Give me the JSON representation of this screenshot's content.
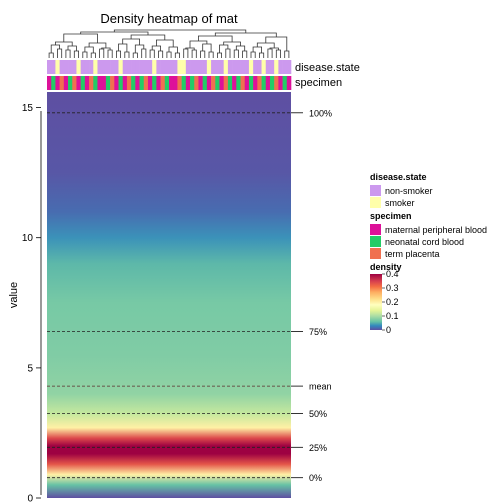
{
  "chart_data": {
    "type": "heatmap",
    "title": "Density heatmap of mat",
    "ylabel": "value",
    "ylim": [
      0,
      15.6
    ],
    "y_ticks": [
      0,
      5,
      10,
      15
    ],
    "n_columns": 58,
    "dendrogram": true,
    "annotation_tracks": [
      {
        "name": "disease.state",
        "title": "disease.state",
        "levels": [
          {
            "label": "non-smoker",
            "color": "#cc99ee"
          },
          {
            "label": "smoker",
            "color": "#ffffaa"
          }
        ],
        "values": [
          0,
          0,
          1,
          0,
          0,
          0,
          0,
          1,
          0,
          0,
          0,
          1,
          0,
          0,
          0,
          0,
          0,
          1,
          0,
          0,
          0,
          0,
          0,
          0,
          0,
          1,
          0,
          0,
          0,
          0,
          0,
          1,
          1,
          0,
          0,
          0,
          0,
          0,
          1,
          0,
          0,
          0,
          1,
          0,
          0,
          0,
          0,
          0,
          1,
          0,
          0,
          1,
          0,
          0,
          1,
          0,
          0,
          0
        ]
      },
      {
        "name": "specimen",
        "title": "specimen",
        "levels": [
          {
            "label": "maternal peripheral blood",
            "color": "#dd1199"
          },
          {
            "label": "neonatal cord blood",
            "color": "#22cc66"
          },
          {
            "label": "term placenta",
            "color": "#f07050"
          }
        ],
        "values": [
          0,
          1,
          0,
          2,
          0,
          1,
          2,
          0,
          1,
          0,
          2,
          1,
          0,
          0,
          1,
          2,
          0,
          1,
          0,
          2,
          1,
          0,
          1,
          2,
          0,
          1,
          0,
          2,
          1,
          0,
          0,
          2,
          1,
          0,
          1,
          2,
          0,
          1,
          0,
          2,
          1,
          0,
          2,
          1,
          0,
          1,
          2,
          0,
          1,
          0,
          2,
          1,
          0,
          1,
          2,
          0,
          1,
          0
        ]
      }
    ],
    "density_profile": [
      {
        "y": 0.0,
        "d": 0.0
      },
      {
        "y": 0.5,
        "d": 0.06
      },
      {
        "y": 0.9,
        "d": 0.2
      },
      {
        "y": 1.3,
        "d": 0.33
      },
      {
        "y": 1.7,
        "d": 0.4
      },
      {
        "y": 2.0,
        "d": 0.4
      },
      {
        "y": 2.3,
        "d": 0.34
      },
      {
        "y": 2.7,
        "d": 0.2
      },
      {
        "y": 3.2,
        "d": 0.12
      },
      {
        "y": 4.0,
        "d": 0.085
      },
      {
        "y": 5.5,
        "d": 0.075
      },
      {
        "y": 7.5,
        "d": 0.07
      },
      {
        "y": 9.0,
        "d": 0.055
      },
      {
        "y": 10.0,
        "d": 0.035
      },
      {
        "y": 11.0,
        "d": 0.015
      },
      {
        "y": 12.5,
        "d": 0.004
      },
      {
        "y": 15.6,
        "d": 0.0
      }
    ],
    "quantiles": [
      {
        "label": "100%",
        "value": 14.8
      },
      {
        "label": "75%",
        "value": 6.4
      },
      {
        "label": "mean",
        "value": 4.3
      },
      {
        "label": "50%",
        "value": 3.25
      },
      {
        "label": "25%",
        "value": 1.95
      },
      {
        "label": "0%",
        "value": 0.78
      }
    ],
    "color_legend": {
      "title": "density",
      "breaks": [
        {
          "label": "0.4",
          "value": 0.4
        },
        {
          "label": "0.3",
          "value": 0.3
        },
        {
          "label": "0.2",
          "value": 0.2
        },
        {
          "label": "0.1",
          "value": 0.1
        },
        {
          "label": "0",
          "value": 0.0
        }
      ],
      "color_stops": [
        {
          "value": 0.0,
          "color": "#5e4fa2"
        },
        {
          "value": 0.03,
          "color": "#3288bd"
        },
        {
          "value": 0.06,
          "color": "#66c2a5"
        },
        {
          "value": 0.1,
          "color": "#abdda4"
        },
        {
          "value": 0.14,
          "color": "#e6f598"
        },
        {
          "value": 0.18,
          "color": "#ffffbf"
        },
        {
          "value": 0.22,
          "color": "#fee08b"
        },
        {
          "value": 0.27,
          "color": "#fdae61"
        },
        {
          "value": 0.31,
          "color": "#f46d43"
        },
        {
          "value": 0.35,
          "color": "#d53e4f"
        },
        {
          "value": 0.4,
          "color": "#9e0142"
        }
      ]
    }
  }
}
